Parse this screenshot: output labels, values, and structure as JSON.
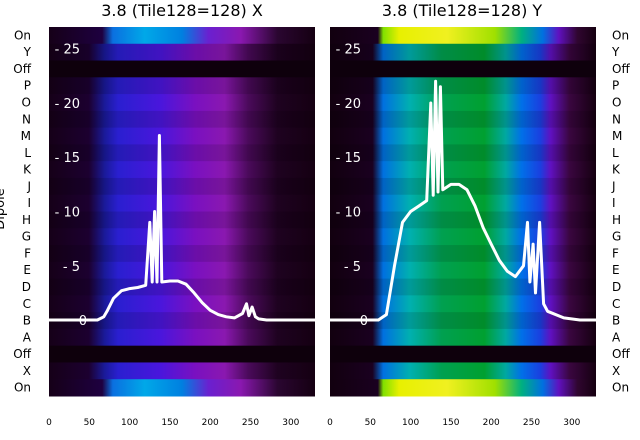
{
  "chart_data": [
    {
      "type": "heatmap",
      "title": "3.8 (Tile128=128) X",
      "ylabel": "Dipole",
      "xlim": [
        0,
        330
      ],
      "xticks": [
        0,
        50,
        100,
        150,
        200,
        250,
        300
      ],
      "row_labels": [
        "On",
        "Y",
        "Off",
        "P",
        "O",
        "N",
        "M",
        "L",
        "K",
        "J",
        "I",
        "H",
        "G",
        "F",
        "E",
        "D",
        "C",
        "B",
        "A",
        "Off",
        "X",
        "On"
      ],
      "overlay": {
        "type": "line",
        "ylim": [
          -7,
          27
        ],
        "yticks": [
          0,
          5,
          10,
          15,
          20,
          25
        ],
        "x": [
          0,
          40,
          60,
          68,
          72,
          80,
          90,
          100,
          110,
          120,
          125,
          128,
          131,
          134,
          137,
          140,
          150,
          160,
          170,
          180,
          190,
          200,
          210,
          220,
          230,
          240,
          245,
          248,
          252,
          256,
          260,
          270,
          290,
          310,
          330
        ],
        "y": [
          0,
          0,
          0,
          0.3,
          0.8,
          2.0,
          2.7,
          2.9,
          3.0,
          3.2,
          9.0,
          3.5,
          10.0,
          3.5,
          17.0,
          3.5,
          3.6,
          3.6,
          3.3,
          2.5,
          1.6,
          0.9,
          0.5,
          0.3,
          0.2,
          0.6,
          1.5,
          0.4,
          1.2,
          0.3,
          0.1,
          0,
          0,
          0,
          0
        ]
      }
    },
    {
      "type": "heatmap",
      "title": "3.8 (Tile128=128) Y",
      "xlim": [
        0,
        330
      ],
      "xticks": [
        0,
        50,
        100,
        150,
        200,
        250,
        300
      ],
      "row_labels": [
        "On",
        "Y",
        "Off",
        "P",
        "O",
        "N",
        "M",
        "L",
        "K",
        "J",
        "I",
        "H",
        "G",
        "F",
        "E",
        "D",
        "C",
        "B",
        "A",
        "Off",
        "X",
        "On"
      ],
      "overlay": {
        "type": "line",
        "ylim": [
          -7,
          27
        ],
        "yticks": [
          0,
          5,
          10,
          15,
          20,
          25
        ],
        "x": [
          0,
          60,
          70,
          80,
          90,
          100,
          110,
          120,
          125,
          128,
          131,
          134,
          137,
          140,
          150,
          160,
          170,
          180,
          190,
          200,
          210,
          220,
          230,
          240,
          245,
          248,
          252,
          255,
          260,
          265,
          270,
          290,
          310,
          330
        ],
        "y": [
          0,
          0,
          0.5,
          5.0,
          9.0,
          10.0,
          10.5,
          11.0,
          20.0,
          11.5,
          22.0,
          11.8,
          21.5,
          12.0,
          12.5,
          12.5,
          12.0,
          10.5,
          8.5,
          7.0,
          5.5,
          4.5,
          4.0,
          5.0,
          9.0,
          3.5,
          7.0,
          2.5,
          9.0,
          1.5,
          0.8,
          0.2,
          0,
          0
        ]
      }
    }
  ]
}
